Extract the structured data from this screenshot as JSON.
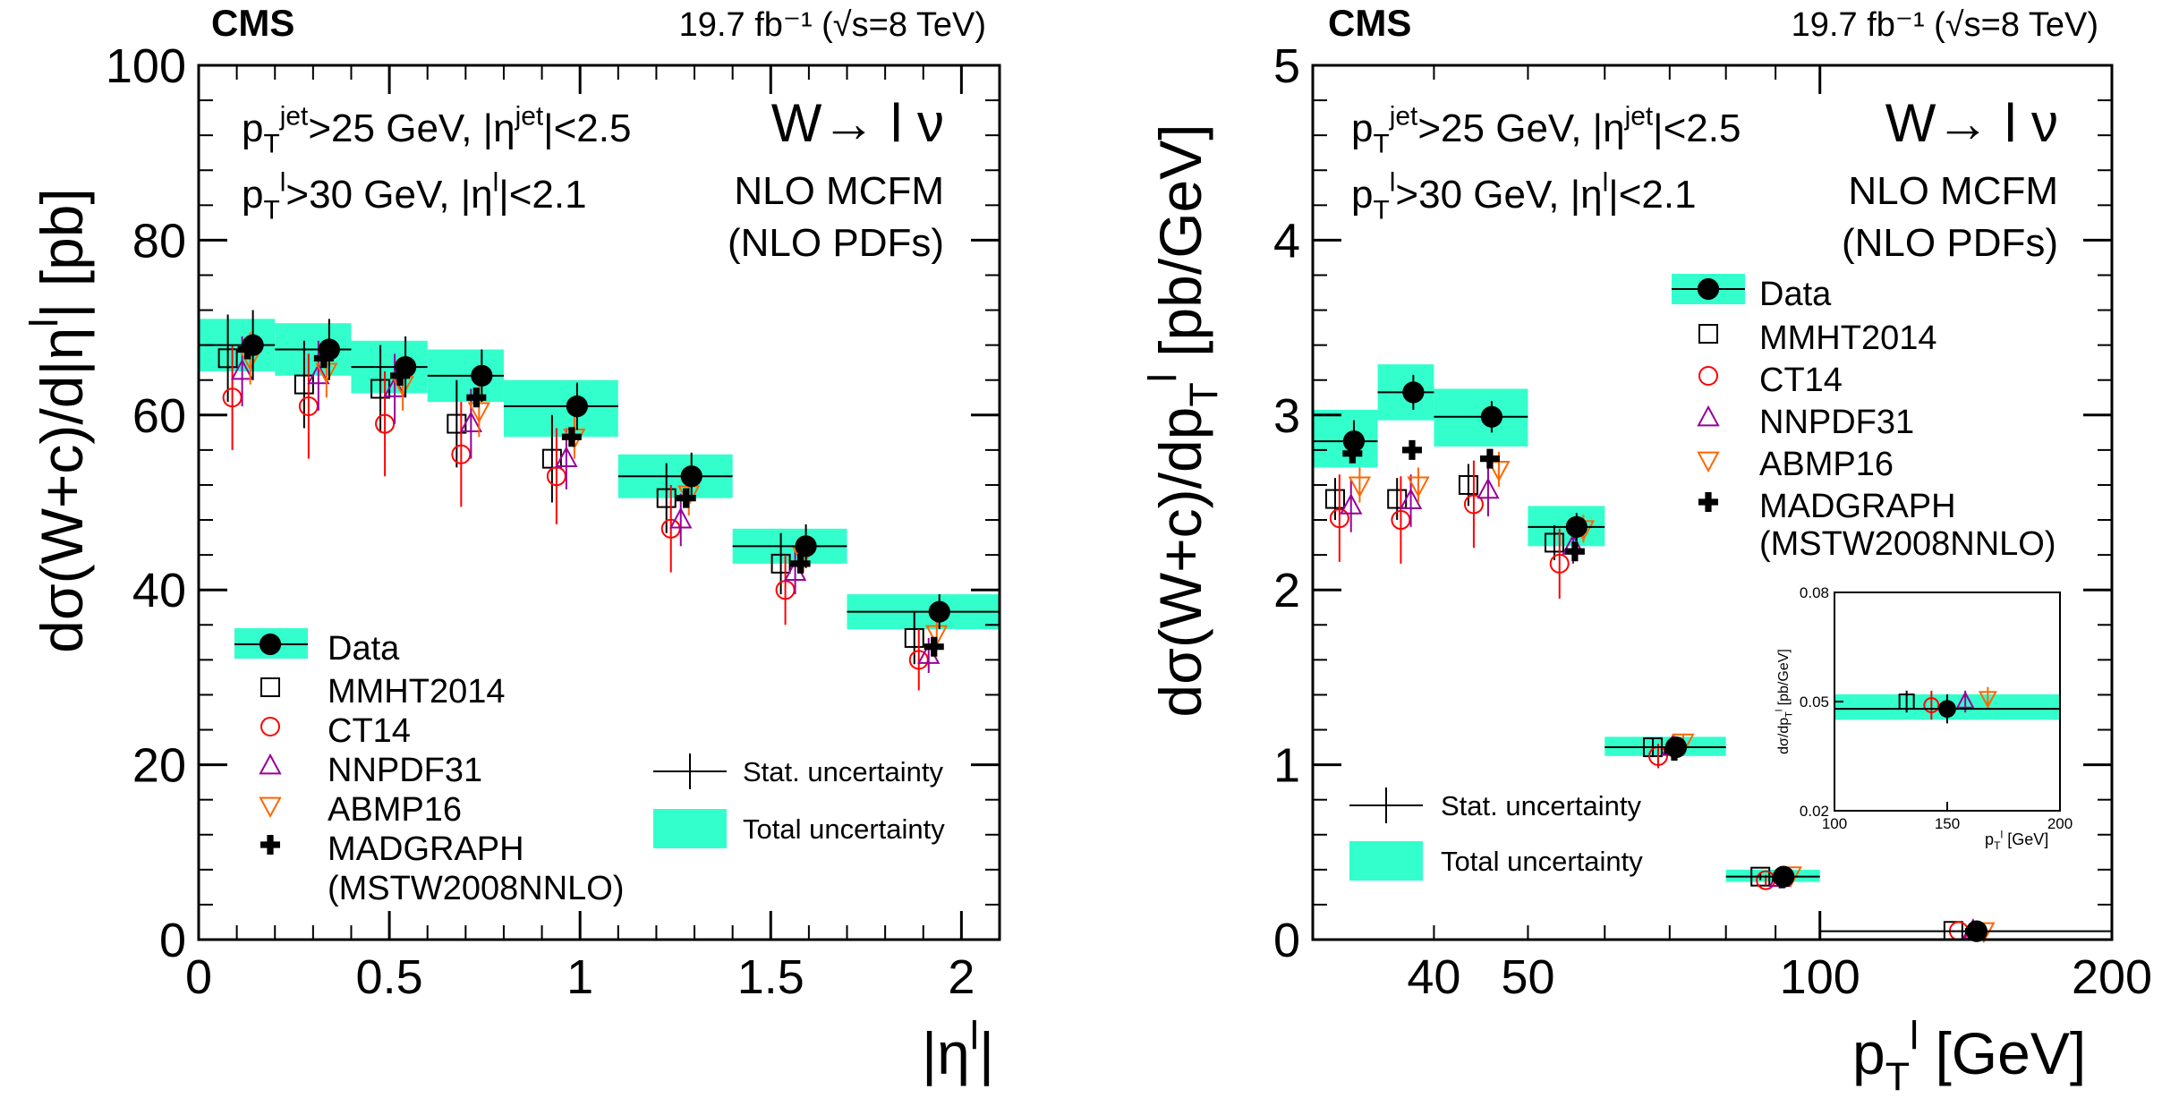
{
  "figure": {
    "legend_labels": {
      "data": "Data",
      "mmht": "MMHT2014",
      "ct14": "CT14",
      "nnpdf": "NNPDF31",
      "abmp": "ABMP16",
      "madgraph_1": "MADGRAPH",
      "madgraph_2": "(MSTW2008NNLO)",
      "stat": "Stat. uncertainty",
      "total": "Total uncertainty"
    },
    "colors": {
      "band": "#33ffcc",
      "data": "#000000",
      "mmht": "#000000",
      "ct14": "#ff0000",
      "nnpdf": "#990099",
      "abmp": "#ff6600",
      "madgraph": "#000000"
    }
  },
  "chart_data": [
    {
      "type": "scatter",
      "cms_label": "CMS",
      "lumi_label": "19.7 fb⁻¹ (√s=8 TeV)",
      "xlabel": "|η^l|",
      "ylabel": "dσ(W+c)/d|η^l| [pb]",
      "xlim": [
        0,
        2.1
      ],
      "ylim": [
        0,
        100
      ],
      "x_ticks": [
        "0",
        "0.5",
        "1",
        "1.5",
        "2"
      ],
      "y_ticks": [
        "0",
        "20",
        "40",
        "60",
        "80",
        "100"
      ],
      "cut_text_1": "p_T^jet>25 GeV, |η^jet|<2.5",
      "cut_text_2": "p_T^l>30 GeV, |η^l|<2.1",
      "process": "W→ l ν",
      "theory_1": "NLO MCFM",
      "theory_2": "(NLO PDFs)",
      "bins": [
        [
          0,
          0.2
        ],
        [
          0.2,
          0.4
        ],
        [
          0.4,
          0.6
        ],
        [
          0.6,
          0.8
        ],
        [
          0.8,
          1.1
        ],
        [
          1.1,
          1.4
        ],
        [
          1.4,
          1.7
        ],
        [
          1.7,
          2.1
        ]
      ],
      "data": {
        "values": [
          68,
          67.5,
          65.5,
          64.5,
          61,
          53,
          45,
          37.5
        ],
        "stat": [
          4,
          3.5,
          3.5,
          3,
          2.7,
          2.7,
          2.5,
          2
        ],
        "total_lo": [
          65,
          64.5,
          62.5,
          61.5,
          57.5,
          50.5,
          43,
          35.5
        ],
        "total_hi": [
          71,
          70.5,
          68.5,
          67.5,
          64,
          55.5,
          47,
          39.5
        ]
      },
      "theory": [
        {
          "name": "MMHT2014",
          "values": [
            66.5,
            63.5,
            63,
            59,
            55,
            50.5,
            43,
            34.5
          ],
          "err": [
            5,
            5,
            5,
            5,
            5,
            4,
            3.5,
            3
          ]
        },
        {
          "name": "CT14",
          "values": [
            62,
            61,
            59,
            55.5,
            53,
            47,
            40,
            32
          ],
          "err": [
            6,
            6,
            6,
            6,
            5.5,
            5,
            4,
            3.5
          ]
        },
        {
          "name": "NNPDF31",
          "values": [
            65,
            64.5,
            63,
            59,
            55,
            48,
            42,
            32.5
          ],
          "err": [
            4,
            4,
            4,
            4,
            3.5,
            3,
            2.5,
            2
          ]
        },
        {
          "name": "ABMP16",
          "values": [
            66.5,
            65,
            63.5,
            60.5,
            57.5,
            51,
            44,
            35
          ],
          "err": [
            3,
            3,
            3,
            3,
            2.5,
            2.5,
            2,
            1.5
          ]
        },
        {
          "name": "MADGRAPH",
          "values": [
            67.5,
            66.5,
            64.5,
            62,
            57.5,
            50.5,
            43,
            33.5
          ],
          "err": [
            0,
            0,
            0,
            0,
            0,
            0,
            0,
            0
          ]
        }
      ]
    },
    {
      "type": "scatter",
      "cms_label": "CMS",
      "lumi_label": "19.7 fb⁻¹ (√s=8 TeV)",
      "xlabel": "p_T^l [GeV]",
      "ylabel": "dσ(W+c)/dp_T^l [pb/GeV]",
      "x_scale": "log",
      "xlim": [
        30,
        200
      ],
      "ylim": [
        0,
        5
      ],
      "x_ticks": [
        "40",
        "50",
        "100",
        "200"
      ],
      "y_ticks": [
        "0",
        "1",
        "2",
        "3",
        "4",
        "5"
      ],
      "cut_text_1": "p_T^jet>25 GeV, |η^jet|<2.5",
      "cut_text_2": "p_T^l>30 GeV, |η^l|<2.1",
      "process": "W→ l ν",
      "theory_1": "NLO MCFM",
      "theory_2": "(NLO PDFs)",
      "bins": [
        [
          30,
          35
        ],
        [
          35,
          40
        ],
        [
          40,
          50
        ],
        [
          50,
          60
        ],
        [
          60,
          80
        ],
        [
          80,
          100
        ],
        [
          100,
          200
        ]
      ],
      "data": {
        "values": [
          2.85,
          3.13,
          2.99,
          2.36,
          1.1,
          0.36,
          0.048
        ],
        "stat": [
          0.12,
          0.1,
          0.09,
          0.08,
          0.05,
          0.03,
          0.004
        ],
        "total_lo": [
          2.7,
          2.97,
          2.82,
          2.25,
          1.05,
          0.33,
          0.045
        ],
        "total_hi": [
          3.03,
          3.29,
          3.15,
          2.48,
          1.16,
          0.4,
          0.052
        ]
      },
      "theory": [
        {
          "name": "MMHT2014",
          "values": [
            2.52,
            2.52,
            2.6,
            2.27,
            1.1,
            0.36,
            0.05
          ],
          "err": [
            0.12,
            0.12,
            0.12,
            0.1,
            0.05,
            0.02,
            0.003
          ]
        },
        {
          "name": "CT14",
          "values": [
            2.41,
            2.4,
            2.49,
            2.15,
            1.05,
            0.34,
            0.049
          ],
          "err": [
            0.25,
            0.25,
            0.25,
            0.2,
            0.07,
            0.03,
            0.004
          ]
        },
        {
          "name": "NNPDF31",
          "values": [
            2.48,
            2.51,
            2.57,
            2.25,
            1.1,
            0.35,
            0.05
          ],
          "err": [
            0.15,
            0.15,
            0.15,
            0.1,
            0.05,
            0.02,
            0.003
          ]
        },
        {
          "name": "ABMP16",
          "values": [
            2.6,
            2.6,
            2.69,
            2.35,
            1.13,
            0.37,
            0.051
          ],
          "err": [
            0.1,
            0.1,
            0.1,
            0.08,
            0.04,
            0.02,
            0.003
          ]
        },
        {
          "name": "MADGRAPH",
          "values": [
            2.78,
            2.8,
            2.75,
            2.22,
            1.08,
            0.35,
            0.048
          ],
          "err": [
            0,
            0,
            0,
            0,
            0,
            0,
            0
          ]
        }
      ],
      "inset": {
        "xlabel": "p_T^l [GeV]",
        "ylabel": "dσ/dp_T^l [pb/GeV]",
        "xlim": [
          100,
          200
        ],
        "ylim": [
          0.02,
          0.08
        ],
        "x_ticks": [
          "100",
          "150",
          "200"
        ],
        "y_ticks": [
          "0.02",
          "0.05",
          "0.08"
        ]
      }
    }
  ]
}
